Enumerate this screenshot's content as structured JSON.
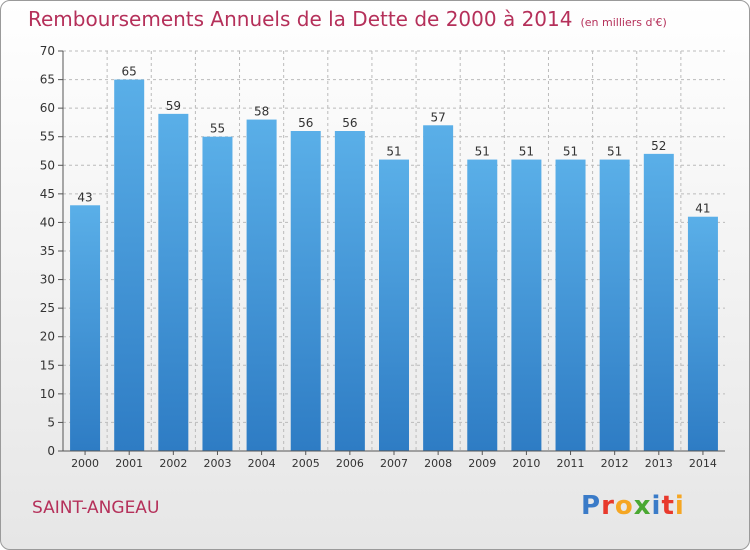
{
  "chart_data": {
    "type": "bar",
    "title": "Remboursements Annuels de la Dette de 2000 à 2014",
    "subtitle": "(en milliers d'€)",
    "categories": [
      "2000",
      "2001",
      "2002",
      "2003",
      "2004",
      "2005",
      "2006",
      "2007",
      "2008",
      "2009",
      "2010",
      "2011",
      "2012",
      "2013",
      "2014"
    ],
    "values": [
      43,
      65,
      59,
      55,
      58,
      56,
      56,
      51,
      57,
      51,
      51,
      51,
      51,
      52,
      41
    ],
    "ylim": [
      0,
      70
    ],
    "yticks": [
      0,
      5,
      10,
      15,
      20,
      25,
      30,
      35,
      40,
      45,
      50,
      55,
      60,
      65,
      70
    ],
    "grid": true,
    "xlabel": "",
    "ylabel": ""
  },
  "commune": "SAINT-ANGEAU",
  "logo": {
    "text": "Proxiti",
    "letters": [
      "P",
      "r",
      "o",
      "x",
      "i",
      "t",
      "i"
    ],
    "colors": [
      "#3a7bc8",
      "#e8392c",
      "#f5a623",
      "#4aa832",
      "#3a7bc8",
      "#e8392c",
      "#f5a623"
    ]
  },
  "colors": {
    "title": "#b5305a",
    "bar_top": "#5aafe8",
    "bar_bottom": "#2e7cc4",
    "grid": "#bbbbbb"
  }
}
